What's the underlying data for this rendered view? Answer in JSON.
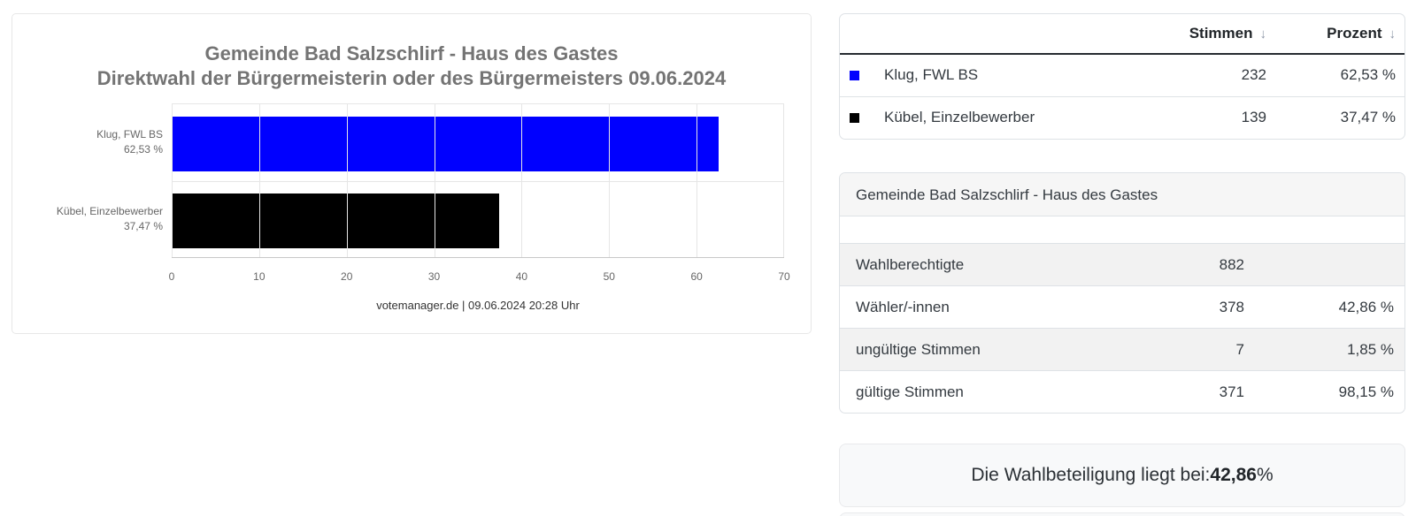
{
  "chart_data": {
    "type": "bar",
    "orientation": "horizontal",
    "title": "Gemeinde Bad Salzschlirf - Haus des Gastes",
    "subtitle": "Direktwahl der Bürgermeisterin oder des Bürgermeisters 09.06.2024",
    "categories": [
      "Klug, FWL BS",
      "Kübel, Einzelbewerber"
    ],
    "values": [
      62.53,
      37.47
    ],
    "value_labels": [
      "62,53 %",
      "37,47 %"
    ],
    "bar_colors": [
      "#0000ff",
      "#000000"
    ],
    "xlim": [
      0,
      70
    ],
    "xticks": [
      0,
      10,
      20,
      30,
      40,
      50,
      60,
      70
    ],
    "grid": true,
    "legend": "none",
    "caption": "votemanager.de | 09.06.2024 20:28 Uhr"
  },
  "results_table": {
    "headers": {
      "stimmen": "Stimmen",
      "prozent": "Prozent"
    },
    "sort_icon": "↓",
    "rows": [
      {
        "color": "#0000ff",
        "name": "Klug, FWL BS",
        "stimmen": "232",
        "prozent": "62,53 %"
      },
      {
        "color": "#000000",
        "name": "Kübel, Einzelbewerber",
        "stimmen": "139",
        "prozent": "37,47 %"
      }
    ]
  },
  "stats_panel": {
    "title": "Gemeinde Bad Salzschlirf - Haus des Gastes",
    "rows": [
      {
        "label": "Wahlberechtigte",
        "value": "882",
        "percent": ""
      },
      {
        "label": "Wähler/-innen",
        "value": "378",
        "percent": "42,86 %"
      },
      {
        "label": "ungültige Stimmen",
        "value": "7",
        "percent": "1,85 %"
      },
      {
        "label": "gültige Stimmen",
        "value": "371",
        "percent": "98,15 %"
      }
    ]
  },
  "turnout_panel": {
    "prefix": "Die Wahlbeteiligung liegt bei: ",
    "value": "42,86",
    "suffix": " %"
  },
  "colors": {
    "candidate_klug": "#0000ff",
    "candidate_kuebel": "#000000"
  }
}
